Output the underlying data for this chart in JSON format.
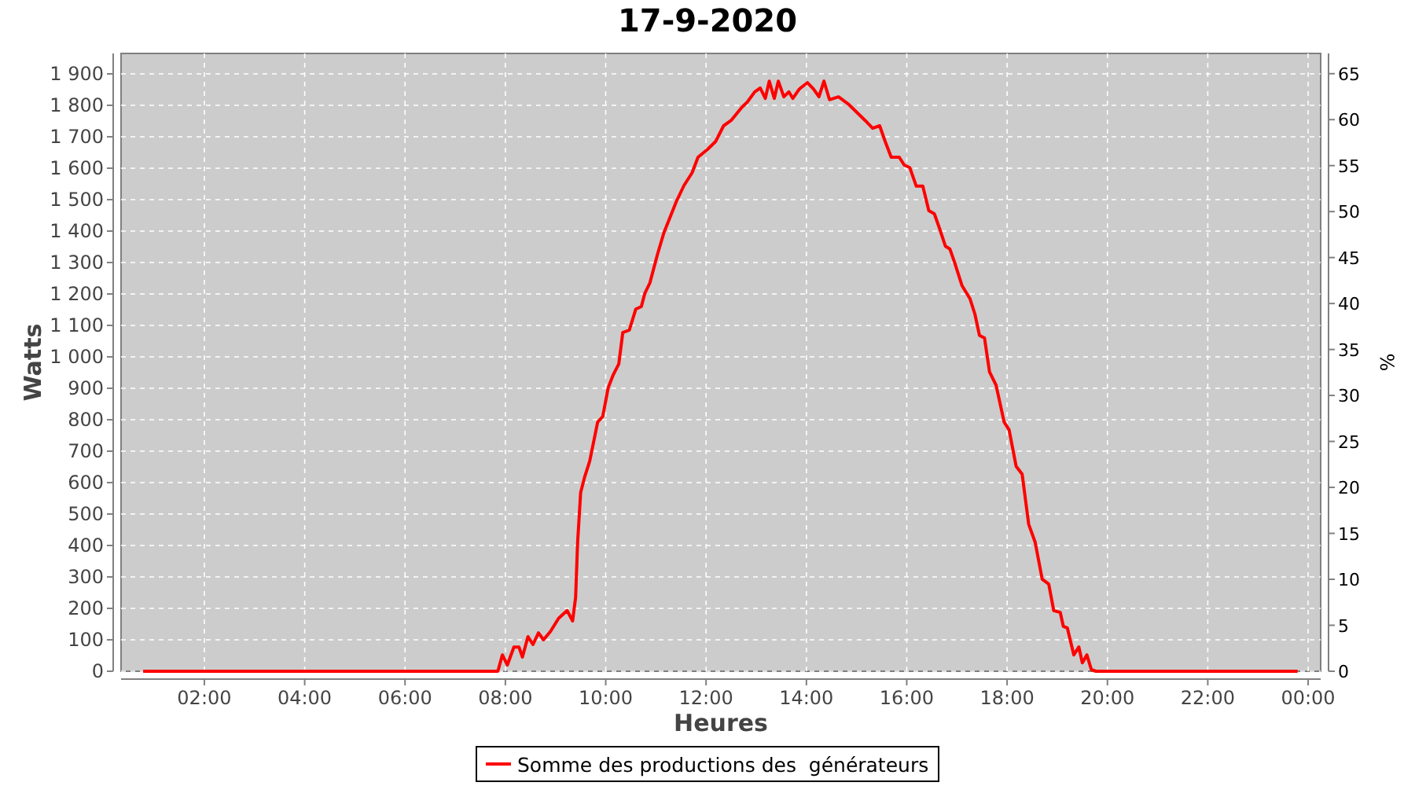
{
  "chart_data": {
    "type": "line",
    "title": "17-9-2020",
    "xlabel": "Heures",
    "ylabel": "Watts",
    "y2label": "%",
    "xlim": [
      0.34,
      24.25
    ],
    "xticks": [
      {
        "value": 2,
        "label": "02:00"
      },
      {
        "value": 4,
        "label": "04:00"
      },
      {
        "value": 6,
        "label": "06:00"
      },
      {
        "value": 8,
        "label": "08:00"
      },
      {
        "value": 10,
        "label": "10:00"
      },
      {
        "value": 12,
        "label": "12:00"
      },
      {
        "value": 14,
        "label": "14:00"
      },
      {
        "value": 16,
        "label": "16:00"
      },
      {
        "value": 18,
        "label": "18:00"
      },
      {
        "value": 20,
        "label": "20:00"
      },
      {
        "value": 22,
        "label": "22:00"
      },
      {
        "value": 24,
        "label": "00:00"
      }
    ],
    "ylim": [
      0,
      1965
    ],
    "yticks": [
      0,
      100,
      200,
      300,
      400,
      500,
      600,
      700,
      800,
      900,
      {
        "value": 1000,
        "label": "1 000"
      },
      {
        "value": 1100,
        "label": "1 100"
      },
      {
        "value": 1200,
        "label": "1 200"
      },
      {
        "value": 1300,
        "label": "1 300"
      },
      {
        "value": 1400,
        "label": "1 400"
      },
      {
        "value": 1500,
        "label": "1 500"
      },
      {
        "value": 1600,
        "label": "1 600"
      },
      {
        "value": 1700,
        "label": "1 700"
      },
      {
        "value": 1800,
        "label": "1 800"
      },
      {
        "value": 1900,
        "label": "1 900"
      }
    ],
    "y2lim": [
      0,
      67.2
    ],
    "y2ticks": [
      0,
      5,
      10,
      15,
      20,
      25,
      30,
      35,
      40,
      45,
      50,
      55,
      60,
      65
    ],
    "grid": true,
    "legend": "bottom",
    "line_style": "solid",
    "series": [
      {
        "name": "Somme des productions des  générateurs",
        "color": "#ff0000",
        "x": [
          0.78,
          7.85,
          7.94,
          8.04,
          8.17,
          8.27,
          8.34,
          8.45,
          8.55,
          8.66,
          8.76,
          8.9,
          9.06,
          9.23,
          9.34,
          9.4,
          9.44,
          9.5,
          9.58,
          9.68,
          9.84,
          9.94,
          10.05,
          10.15,
          10.26,
          10.34,
          10.47,
          10.6,
          10.71,
          10.78,
          10.88,
          11.03,
          11.16,
          11.41,
          11.56,
          11.72,
          11.84,
          12.03,
          12.19,
          12.35,
          12.5,
          12.71,
          12.82,
          12.97,
          13.08,
          13.18,
          13.26,
          13.36,
          13.44,
          13.55,
          13.65,
          13.73,
          13.86,
          14.02,
          14.14,
          14.25,
          14.35,
          14.46,
          14.64,
          14.85,
          15.01,
          15.17,
          15.32,
          15.46,
          15.57,
          15.69,
          15.85,
          15.95,
          16.06,
          16.19,
          16.32,
          16.44,
          16.55,
          16.65,
          16.77,
          16.86,
          16.95,
          17.1,
          17.26,
          17.36,
          17.45,
          17.55,
          17.65,
          17.78,
          17.94,
          18.04,
          18.18,
          18.3,
          18.43,
          18.56,
          18.7,
          18.83,
          18.93,
          19.06,
          19.12,
          19.2,
          19.33,
          19.43,
          19.5,
          19.59,
          19.68,
          19.77,
          23.79
        ],
        "values": [
          0,
          0,
          52,
          20,
          77,
          77,
          45,
          110,
          85,
          122,
          100,
          127,
          168,
          193,
          160,
          235,
          410,
          568,
          618,
          668,
          793,
          810,
          902,
          943,
          977,
          1077,
          1085,
          1152,
          1160,
          1202,
          1235,
          1325,
          1395,
          1495,
          1545,
          1585,
          1635,
          1660,
          1685,
          1735,
          1752,
          1793,
          1810,
          1843,
          1855,
          1822,
          1877,
          1822,
          1877,
          1827,
          1843,
          1822,
          1852,
          1872,
          1852,
          1827,
          1877,
          1818,
          1827,
          1802,
          1777,
          1752,
          1727,
          1735,
          1685,
          1635,
          1635,
          1610,
          1602,
          1543,
          1543,
          1465,
          1455,
          1410,
          1352,
          1343,
          1302,
          1227,
          1185,
          1135,
          1068,
          1060,
          952,
          910,
          793,
          768,
          652,
          627,
          468,
          410,
          293,
          277,
          193,
          187,
          143,
          138,
          52,
          77,
          27,
          52,
          5,
          0,
          0
        ]
      }
    ]
  }
}
